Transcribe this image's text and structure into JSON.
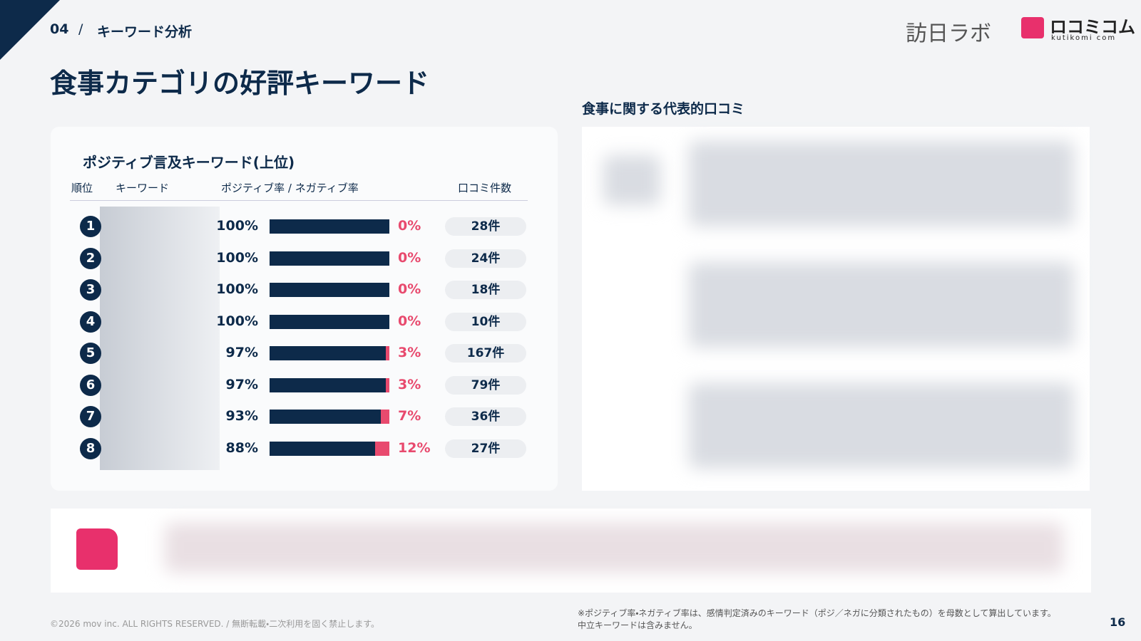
{
  "header": {
    "section": "04",
    "separator": "/",
    "label": "キーワード分析",
    "title": "食事カテゴリの好評キーワード"
  },
  "logos": {
    "houjin": "訪日ラボ",
    "kuchikomi": "ロコミコム",
    "kuchikomi_sub": "kutikomi com"
  },
  "panel": {
    "title": "ポジティブ言及キーワード(上位)",
    "columns": [
      "順位",
      "キーワード",
      "ポジティブ率 / ネガティブ率",
      "口コミ件数"
    ],
    "rows": [
      {
        "rank": "1",
        "positive": 100,
        "positive_label": "100%",
        "negative": 0,
        "negative_label": "0%",
        "count": "28件"
      },
      {
        "rank": "2",
        "positive": 100,
        "positive_label": "100%",
        "negative": 0,
        "negative_label": "0%",
        "count": "24件"
      },
      {
        "rank": "3",
        "positive": 100,
        "positive_label": "100%",
        "negative": 0,
        "negative_label": "0%",
        "count": "18件"
      },
      {
        "rank": "4",
        "positive": 100,
        "positive_label": "100%",
        "negative": 0,
        "negative_label": "0%",
        "count": "10件"
      },
      {
        "rank": "5",
        "positive": 97,
        "positive_label": "97%",
        "negative": 3,
        "negative_label": "3%",
        "count": "167件"
      },
      {
        "rank": "6",
        "positive": 97,
        "positive_label": "97%",
        "negative": 3,
        "negative_label": "3%",
        "count": "79件"
      },
      {
        "rank": "7",
        "positive": 93,
        "positive_label": "93%",
        "negative": 7,
        "negative_label": "7%",
        "count": "36件"
      },
      {
        "rank": "8",
        "positive": 88,
        "positive_label": "88%",
        "negative": 12,
        "negative_label": "12%",
        "count": "27件"
      }
    ]
  },
  "reviews": {
    "title": "食事に関する代表的口コミ"
  },
  "footer": {
    "copyright": "©2026 mov inc. ALL RIGHTS RESERVED. / 無断転載・二次利用を固く禁止します。",
    "note": [
      "※ポジティブ率・ネガティブ率は、感情判定済みのキーワード（ポジ／ネガに分類されたもの）を母数として算出しています。",
      "中立キーワードは含みません。"
    ],
    "page": "16"
  }
}
